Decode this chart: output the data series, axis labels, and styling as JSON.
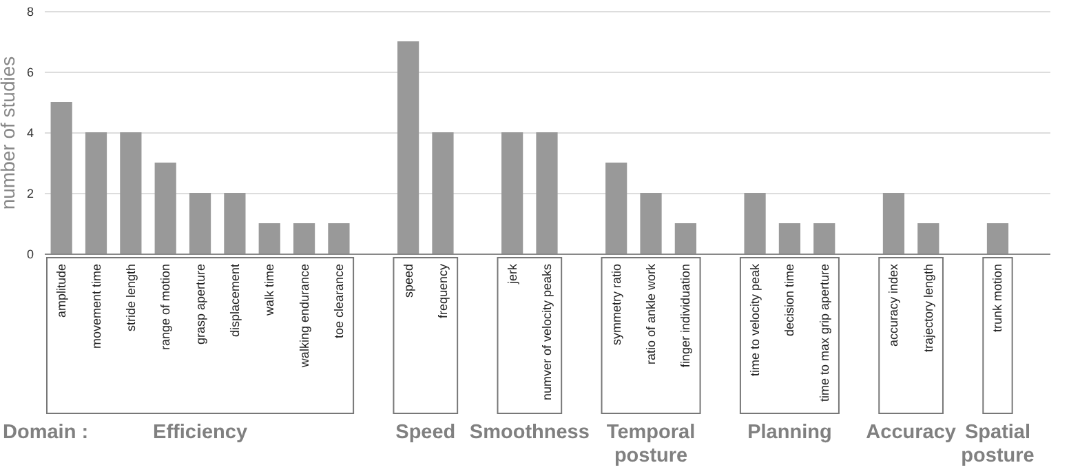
{
  "chart_data": {
    "type": "bar",
    "ylabel": "number of studies",
    "categories": [
      "amplitude",
      "movement time",
      "stride length",
      "range of motion",
      "grasp aperture",
      "displacement",
      "walk time",
      "walking endurance",
      "toe clearance",
      null,
      "speed",
      "frequency",
      null,
      "jerk",
      "numver of velocity peaks",
      null,
      "symmetry ratio",
      "ratio of ankle work",
      "finger individuation",
      null,
      "time to velocity peak",
      "decision time",
      "time to max grip aperture",
      null,
      "accuracy index",
      "trajectory length",
      null,
      "trunk motion",
      null
    ],
    "values": [
      5,
      4,
      4,
      3,
      2,
      2,
      1,
      1,
      1,
      null,
      7,
      4,
      null,
      4,
      4,
      null,
      3,
      2,
      1,
      null,
      2,
      1,
      1,
      null,
      2,
      1,
      null,
      1,
      null
    ],
    "color": "#999999",
    "ylim": [
      0,
      8
    ],
    "yticks": [
      0,
      2,
      4,
      6,
      8
    ],
    "grid": "y",
    "annotations": [
      "Domain :",
      "Efficiency",
      "Speed",
      "Smoothness",
      "Temporal posture",
      "Planning",
      "Accuracy",
      "Spatial posture"
    ]
  }
}
